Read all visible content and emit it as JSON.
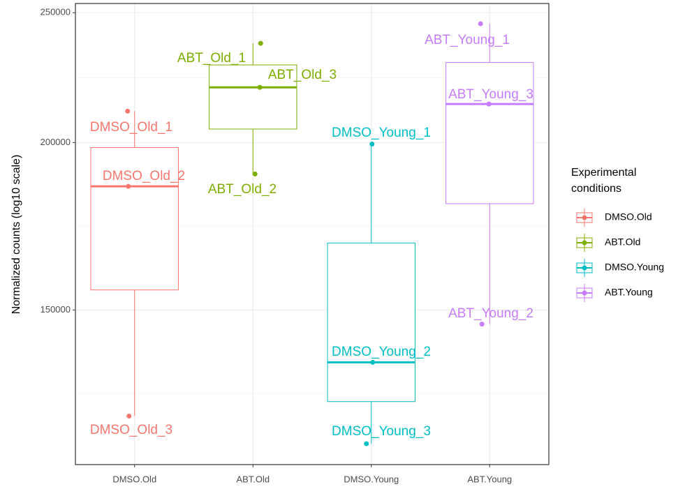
{
  "chart_data": {
    "type": "box",
    "y_label": "Normalized counts (log10 scale)",
    "log_scale": true,
    "grid": true,
    "legend_title": [
      "Experimental",
      "conditions"
    ],
    "legend_position": "right",
    "ylim": [
      115000,
      254000
    ],
    "yticks": [
      150000,
      200000,
      250000
    ],
    "series": [
      {
        "name": "DMSO.Old",
        "color": "#f8766d",
        "labels": [
          "DMSO_Old_1",
          "DMSO_Old_2",
          "DMSO_Old_3"
        ],
        "values": [
          211100,
          185500,
          125000
        ]
      },
      {
        "name": "ABT.Old",
        "color": "#7cae00",
        "labels": [
          "ABT_Old_1",
          "ABT_Old_2",
          "ABT_Old_3"
        ],
        "values": [
          237200,
          189500,
          219900
        ]
      },
      {
        "name": "DMSO.Young",
        "color": "#00bfc4",
        "labels": [
          "DMSO_Young_1",
          "DMSO_Young_2",
          "DMSO_Young_3"
        ],
        "values": [
          199500,
          137100,
          119200
        ]
      },
      {
        "name": "ABT.Young",
        "color": "#c77cff",
        "labels": [
          "ABT_Young_1",
          "ABT_Young_2",
          "ABT_Young_3"
        ],
        "values": [
          245300,
          146400,
          213700
        ]
      }
    ]
  }
}
